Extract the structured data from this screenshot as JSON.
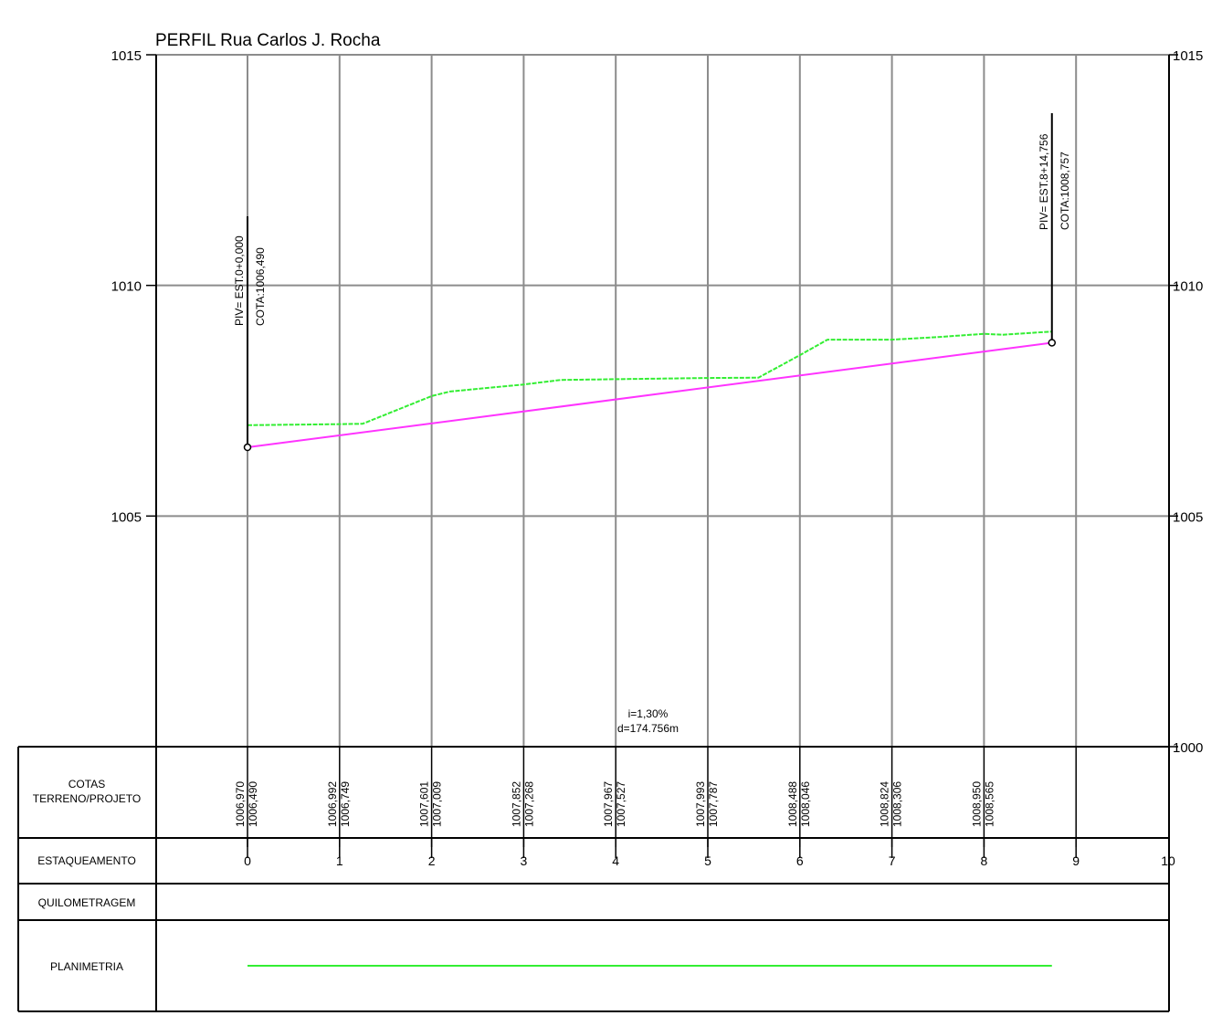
{
  "title": "PERFIL Rua Carlos J. Rocha",
  "chart_data": {
    "type": "line",
    "title": "PERFIL Rua Carlos J. Rocha",
    "x_ticks": [
      "0",
      "1",
      "2",
      "3",
      "4",
      "5",
      "6",
      "7",
      "8",
      "9",
      "10"
    ],
    "y_ticks_left": [
      "1015",
      "1010",
      "1005"
    ],
    "y_ticks_right": [
      "1015",
      "1010",
      "1005",
      "1000"
    ],
    "ylim": [
      1000,
      1015
    ],
    "xlim": [
      0,
      10
    ],
    "grid": true,
    "series": [
      {
        "color": "#33ee33",
        "style": "dashed",
        "x": [
          0,
          1,
          1.25,
          2,
          2.2,
          3,
          3.4,
          4,
          5,
          5.55,
          6,
          6.3,
          7,
          7.5,
          8,
          8.2,
          8.74
        ],
        "y": [
          1006.97,
          1006.992,
          1007.0,
          1007.601,
          1007.7,
          1007.852,
          1007.95,
          1007.967,
          1007.993,
          1008.0,
          1008.488,
          1008.824,
          1008.824,
          1008.88,
          1008.95,
          1008.93,
          1009.0
        ]
      },
      {
        "color": "#ff33ff",
        "style": "solid",
        "x": [
          0,
          8.7378
        ],
        "y": [
          1006.49,
          1008.757
        ]
      }
    ],
    "annotations": {
      "piv_start": {
        "line1": "PIV= EST.0+0,000",
        "line2": "COTA:1006,490",
        "x": 0,
        "y": 1006.49
      },
      "piv_end": {
        "line1": "PIV= EST.8+14,756",
        "line2": "COTA:1008,757",
        "x": 8.7378,
        "y": 1008.757
      },
      "slope": {
        "line1": "i=1,30%",
        "line2": "d=174.756m",
        "x": 4.35
      }
    }
  },
  "table": {
    "rows": {
      "cotas_line1": "COTAS",
      "cotas_line2": "TERRENO/PROJETO",
      "estaqueamento": "ESTAQUEAMENTO",
      "quilometragem": "QUILOMETRAGEM",
      "planimetria": "PLANIMETRIA"
    },
    "cotas": [
      {
        "terreno": "1006,970",
        "projeto": "1006,490"
      },
      {
        "terreno": "1006,992",
        "projeto": "1006,749"
      },
      {
        "terreno": "1007,601",
        "projeto": "1007,009"
      },
      {
        "terreno": "1007,852",
        "projeto": "1007,268"
      },
      {
        "terreno": "1007,967",
        "projeto": "1007,527"
      },
      {
        "terreno": "1007,993",
        "projeto": "1007,787"
      },
      {
        "terreno": "1008,488",
        "projeto": "1008,046"
      },
      {
        "terreno": "1008,824",
        "projeto": "1008,306"
      },
      {
        "terreno": "1008,950",
        "projeto": "1008,565"
      }
    ],
    "planimetria_range": [
      0,
      8.7378
    ],
    "planimetria_color": "#33ee33"
  }
}
